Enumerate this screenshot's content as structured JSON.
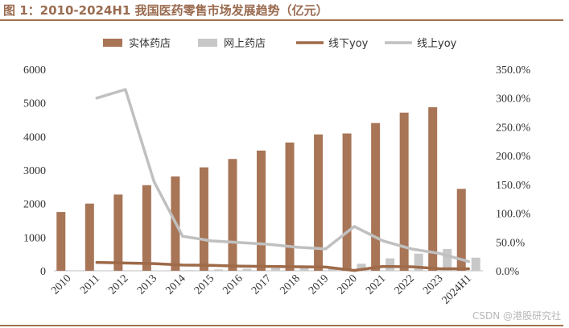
{
  "figure": {
    "title": "图 1：2010-2024H1 我国医药零售市场发展趋势（亿元）",
    "watermark": "CSDN @港股研究社"
  },
  "chart_data": {
    "type": "bar",
    "categories": [
      "2010",
      "2011",
      "2012",
      "2013",
      "2014",
      "2015",
      "2016",
      "2017",
      "2018",
      "2019",
      "2020",
      "2021",
      "2022",
      "2023",
      "2024H1"
    ],
    "series": [
      {
        "name": "实体药店",
        "kind": "bar",
        "axis": "left",
        "color": "#a87557",
        "values": [
          1750,
          2000,
          2270,
          2550,
          2810,
          3080,
          3330,
          3580,
          3820,
          4060,
          4090,
          4400,
          4710,
          4870,
          2440
        ]
      },
      {
        "name": "网上药店",
        "kind": "bar",
        "axis": "left",
        "color": "#c8c8c8",
        "values": [
          0,
          0,
          0,
          10,
          20,
          40,
          60,
          80,
          100,
          120,
          210,
          370,
          510,
          650,
          390
        ]
      },
      {
        "name": "线下yoy",
        "kind": "line",
        "axis": "right",
        "color": "#9e6a48",
        "values": [
          null,
          14.5,
          13.5,
          12.5,
          10.0,
          9.5,
          8.0,
          7.5,
          7.0,
          6.5,
          0.5,
          7.5,
          7.0,
          3.5,
          3.5
        ]
      },
      {
        "name": "线上yoy",
        "kind": "line",
        "axis": "right",
        "color": "#c0c0c0",
        "values": [
          null,
          300.0,
          315.0,
          155.0,
          60.0,
          52.0,
          49.0,
          46.0,
          41.0,
          38.0,
          77.0,
          52.0,
          38.0,
          30.0,
          16.0
        ]
      }
    ],
    "y_left": {
      "min": 0,
      "max": 6000,
      "ticks": [
        "0",
        "1000",
        "2000",
        "3000",
        "4000",
        "5000",
        "6000"
      ]
    },
    "y_right": {
      "min": 0,
      "max": 350,
      "ticks": [
        "0.0%",
        "50.0%",
        "100.0%",
        "150.0%",
        "200.0%",
        "250.0%",
        "300.0%",
        "350.0%"
      ]
    },
    "legend": {
      "position": "top"
    },
    "grid": false
  }
}
